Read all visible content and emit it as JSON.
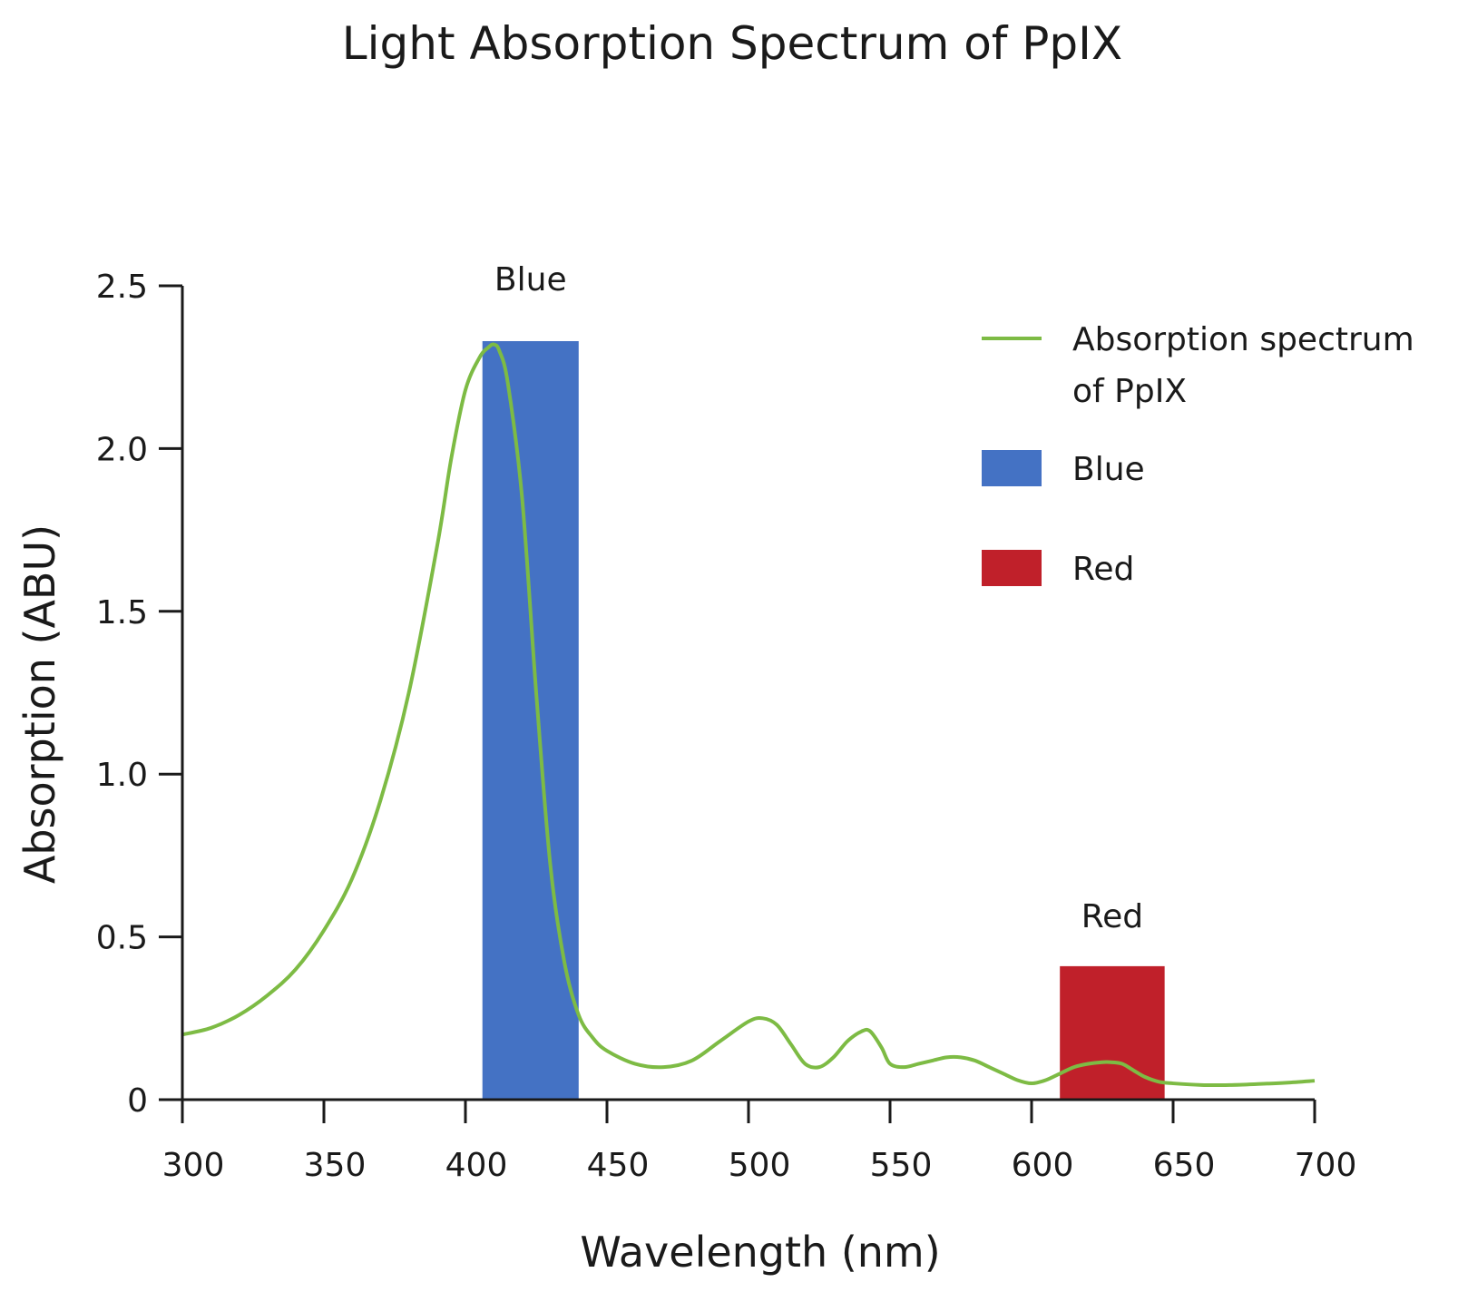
{
  "chart_data": {
    "type": "line",
    "title": "Light Absorption Spectrum of PpIX",
    "xlabel": "Wavelength (nm)",
    "ylabel": "Absorption (ABU)",
    "xlim": [
      300,
      700
    ],
    "ylim": [
      0,
      2.5
    ],
    "x_ticks": [
      300,
      350,
      400,
      450,
      500,
      550,
      600,
      650,
      700
    ],
    "x_tick_labels": [
      "300",
      "350",
      "400",
      "450",
      "500",
      "550",
      "600",
      "650",
      "700"
    ],
    "y_ticks": [
      0,
      0.5,
      1.0,
      1.5,
      2.0,
      2.5
    ],
    "y_tick_labels": [
      "0",
      "0.5",
      "1.0",
      "1.5",
      "2.0",
      "2.5"
    ],
    "grid": false,
    "legend_position": "top-right",
    "series": [
      {
        "name": "Absorption spectrum of PpIX",
        "color": "#7dbb44",
        "x": [
          300,
          310,
          320,
          330,
          340,
          350,
          360,
          370,
          380,
          390,
          395,
          400,
          405,
          408,
          410,
          412,
          415,
          420,
          425,
          430,
          435,
          440,
          445,
          450,
          460,
          470,
          480,
          490,
          500,
          505,
          510,
          515,
          520,
          525,
          530,
          535,
          540,
          543,
          547,
          550,
          555,
          560,
          565,
          570,
          575,
          580,
          585,
          590,
          595,
          600,
          605,
          610,
          615,
          620,
          625,
          628,
          632,
          636,
          640,
          645,
          650,
          660,
          670,
          680,
          690,
          700
        ],
        "y": [
          0.2,
          0.22,
          0.26,
          0.32,
          0.4,
          0.52,
          0.68,
          0.92,
          1.25,
          1.7,
          1.97,
          2.18,
          2.28,
          2.31,
          2.32,
          2.3,
          2.2,
          1.85,
          1.25,
          0.72,
          0.42,
          0.26,
          0.19,
          0.15,
          0.11,
          0.1,
          0.12,
          0.18,
          0.24,
          0.25,
          0.23,
          0.17,
          0.11,
          0.1,
          0.13,
          0.18,
          0.21,
          0.21,
          0.16,
          0.11,
          0.1,
          0.11,
          0.12,
          0.13,
          0.13,
          0.12,
          0.1,
          0.08,
          0.06,
          0.05,
          0.06,
          0.08,
          0.1,
          0.11,
          0.115,
          0.115,
          0.11,
          0.09,
          0.07,
          0.055,
          0.05,
          0.045,
          0.045,
          0.048,
          0.052,
          0.058
        ]
      }
    ],
    "bands": [
      {
        "name": "Blue",
        "color": "#4472c4",
        "x_start": 406,
        "x_end": 440,
        "height": 2.33,
        "label": "Blue"
      },
      {
        "name": "Red",
        "color": "#c0202a",
        "x_start": 610,
        "x_end": 647,
        "height": 0.41,
        "label": "Red"
      }
    ],
    "legend": [
      {
        "label_line1": "Absorption spectrum",
        "label_line2": "of PpIX",
        "kind": "line",
        "color": "#7dbb44"
      },
      {
        "label": "Blue",
        "kind": "box",
        "color": "#4472c4"
      },
      {
        "label": "Red",
        "kind": "box",
        "color": "#c0202a"
      }
    ]
  }
}
